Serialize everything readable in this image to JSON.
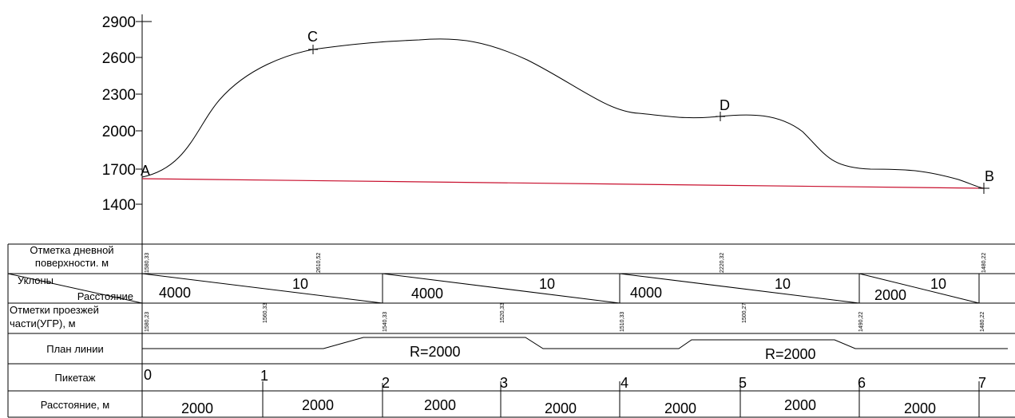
{
  "profile": {
    "y_ticks": [
      "2900",
      "2600",
      "2300",
      "2000",
      "1700",
      "1400"
    ],
    "points": {
      "A": "A",
      "C": "C",
      "D": "D",
      "B": "B"
    }
  },
  "rows": {
    "surface_label_1": "Отметка дневной",
    "surface_label_2": "поверхности. м",
    "slopes_label_1": "Уклоны",
    "slopes_label_2": "Расстояние",
    "road_label_1": "Отметки проезжей",
    "road_label_2": "части(УГР), м",
    "plan_label": "План линии",
    "picket_label": "Пикетаж",
    "distance_label": "Расстояние, м"
  },
  "surface_marks": [
    "1580,33",
    "2610,52",
    "2220,32",
    "1480,22"
  ],
  "slopes": [
    {
      "length": "4000",
      "slope": "10"
    },
    {
      "length": "4000",
      "slope": "10"
    },
    {
      "length": "4000",
      "slope": "10"
    },
    {
      "length": "2000",
      "slope": "10"
    }
  ],
  "road_marks": [
    "1580,23",
    "1560,33",
    "1540,33",
    "1520,33",
    "1510,33",
    "1500,27",
    "1490,22",
    "1480,22"
  ],
  "plan": {
    "curve1": "R=2000",
    "curve2": "R=2000"
  },
  "pickets": [
    "0",
    "1",
    "2",
    "3",
    "4",
    "5",
    "6",
    "7"
  ],
  "distances": [
    "2000",
    "2000",
    "2000",
    "2000",
    "2000",
    "2000",
    "2000"
  ]
}
